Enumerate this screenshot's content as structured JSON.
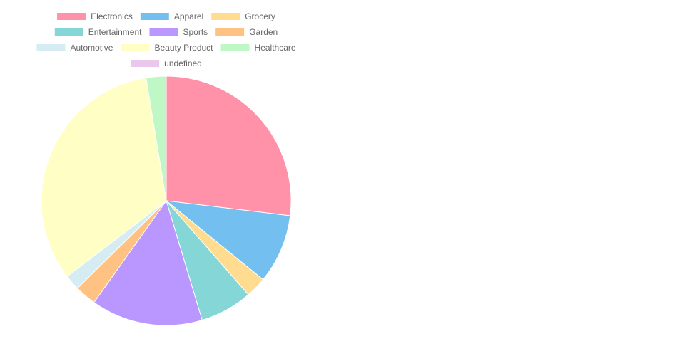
{
  "chart_data": {
    "type": "pie",
    "title": "",
    "categories": [
      "Electronics",
      "Apparel",
      "Grocery",
      "Entertainment",
      "Sports",
      "Garden",
      "Automotive",
      "Beauty Product",
      "Healthcare",
      "undefined"
    ],
    "values": [
      27,
      9,
      2.7,
      6.8,
      14.5,
      2.8,
      2,
      32.9,
      2.6,
      0
    ],
    "colors": [
      "#ff91a8",
      "#72bff0",
      "#ffdc8f",
      "#85d6d6",
      "#b997ff",
      "#ffc283",
      "#d4ecf2",
      "#ffffc5",
      "#bff7c6",
      "#ebc8eb"
    ],
    "legend_position": "top",
    "start_angle": "top, clockwise"
  }
}
